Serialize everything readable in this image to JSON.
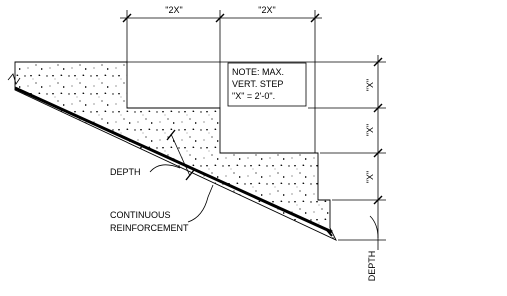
{
  "dimensions": {
    "horizontal": [
      "\"2X\"",
      "\"2X\""
    ],
    "vertical": [
      "\"X\"",
      "\"X\"",
      "\"X\""
    ],
    "depth": "DEPTH"
  },
  "note": {
    "lines": [
      "NOTE: MAX.",
      "VERT. STEP",
      "\"X\" = 2'-0\"."
    ]
  },
  "labels": {
    "depth": "DEPTH",
    "reinforcement": [
      "CONTINUOUS",
      "REINFORCEMENT"
    ]
  }
}
